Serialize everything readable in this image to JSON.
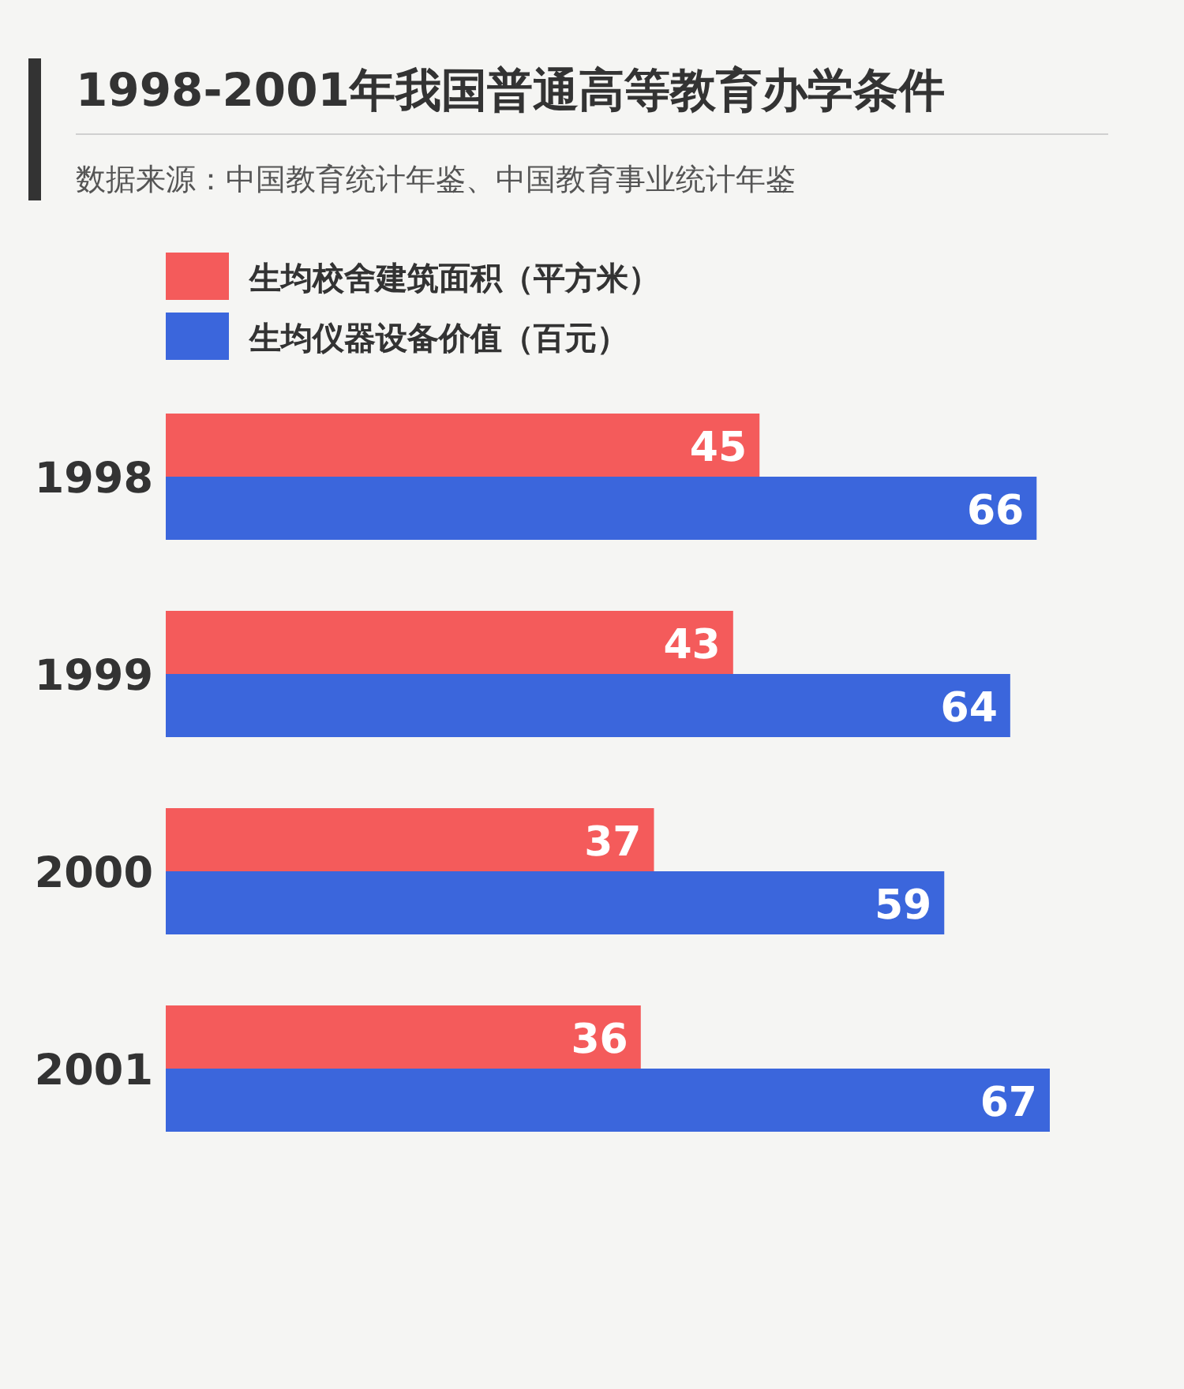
{
  "chart_data": {
    "type": "bar",
    "orientation": "horizontal",
    "title": "1998-2001年我国普通高等教育办学条件",
    "subtitle": "数据来源：中国教育统计年鉴、中国教育事业统计年鉴",
    "categories": [
      "1998",
      "1999",
      "2000",
      "2001"
    ],
    "series": [
      {
        "name": "生均校舍建筑面积（平方米）",
        "color": "#f45b5b",
        "values": [
          45,
          43,
          37,
          36
        ]
      },
      {
        "name": "生均仪器设备价值（百元）",
        "color": "#3b66dc",
        "values": [
          66,
          64,
          59,
          67
        ]
      }
    ],
    "data_labels": true,
    "legend": "top left"
  }
}
